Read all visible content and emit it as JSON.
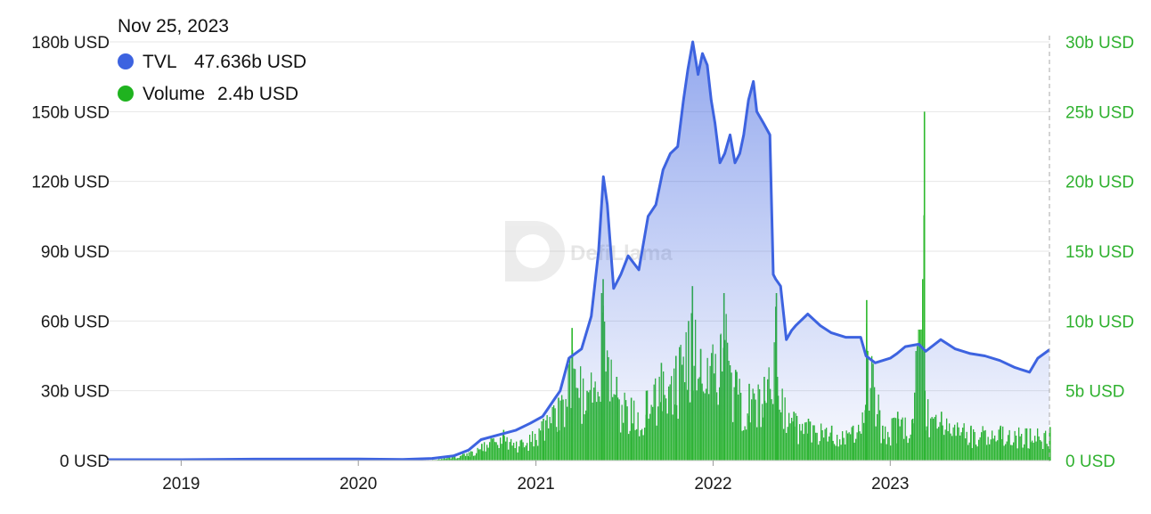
{
  "tooltip": {
    "date": "Nov 25, 2023",
    "items": [
      {
        "name": "TVL",
        "value": "47.636b USD",
        "color": "#3d63e0"
      },
      {
        "name": "Volume",
        "value": "2.4b USD",
        "color": "#1fb31f"
      }
    ]
  },
  "watermark": "DefiLlama",
  "colors": {
    "tvl_line": "#3d63e0",
    "volume_bars": "#2db82d",
    "right_axis_text": "#2fb12f"
  },
  "chart_data": {
    "type": "line",
    "x_axis": {
      "type": "time",
      "ticks": [
        "2019",
        "2020",
        "2021",
        "2022",
        "2023"
      ],
      "range": [
        "2018-08-01",
        "2023-11-25"
      ]
    },
    "y_left": {
      "label": "",
      "ticks": [
        "0 USD",
        "30b USD",
        "60b USD",
        "90b USD",
        "120b USD",
        "150b USD",
        "180b USD"
      ],
      "ylim": [
        0,
        180
      ]
    },
    "y_right": {
      "label": "",
      "ticks": [
        "0 USD",
        "5b USD",
        "10b USD",
        "15b USD",
        "20b USD",
        "25b USD",
        "30b USD"
      ],
      "ylim": [
        0,
        30
      ]
    },
    "grid": true,
    "legend": "top-left",
    "series": [
      {
        "name": "TVL",
        "unit": "b USD",
        "axis": "left",
        "render": "area-line",
        "x": [
          "2018-08-01",
          "2019-01-01",
          "2019-06-01",
          "2020-01-01",
          "2020-04-01",
          "2020-06-01",
          "2020-07-15",
          "2020-08-15",
          "2020-09-10",
          "2020-10-15",
          "2020-11-20",
          "2020-12-20",
          "2021-01-15",
          "2021-02-10",
          "2021-02-20",
          "2021-03-10",
          "2021-04-05",
          "2021-04-25",
          "2021-05-10",
          "2021-05-20",
          "2021-05-28",
          "2021-06-10",
          "2021-06-25",
          "2021-07-10",
          "2021-08-01",
          "2021-08-20",
          "2021-09-05",
          "2021-09-20",
          "2021-10-05",
          "2021-10-20",
          "2021-11-01",
          "2021-11-10",
          "2021-11-20",
          "2021-12-01",
          "2021-12-10",
          "2021-12-20",
          "2021-12-28",
          "2022-01-05",
          "2022-01-15",
          "2022-01-25",
          "2022-02-05",
          "2022-02-15",
          "2022-02-25",
          "2022-03-05",
          "2022-03-15",
          "2022-03-25",
          "2022-04-01",
          "2022-04-15",
          "2022-04-28",
          "2022-05-05",
          "2022-05-10",
          "2022-05-20",
          "2022-06-01",
          "2022-06-12",
          "2022-06-20",
          "2022-07-15",
          "2022-08-10",
          "2022-09-01",
          "2022-10-01",
          "2022-11-01",
          "2022-11-12",
          "2022-12-01",
          "2023-01-01",
          "2023-01-15",
          "2023-02-01",
          "2023-03-01",
          "2023-03-15",
          "2023-04-15",
          "2023-05-15",
          "2023-06-15",
          "2023-07-15",
          "2023-08-15",
          "2023-09-15",
          "2023-10-15",
          "2023-11-01",
          "2023-11-25"
        ],
        "values": [
          0.4,
          0.4,
          0.6,
          0.7,
          0.5,
          0.9,
          2.0,
          4.5,
          9.0,
          11.0,
          13.0,
          16.0,
          19.0,
          27.0,
          30.0,
          44.0,
          48.0,
          62.0,
          90.0,
          122.0,
          110.0,
          74.0,
          80.0,
          88.0,
          82.0,
          105.0,
          110.0,
          125.0,
          132.0,
          135.0,
          155.0,
          168.0,
          180.0,
          166.0,
          175.0,
          170.0,
          155.0,
          145.0,
          128.0,
          132.0,
          140.0,
          128.0,
          132.0,
          140.0,
          155.0,
          163.0,
          150.0,
          145.0,
          140.0,
          80.0,
          78.0,
          75.0,
          52.0,
          56.0,
          58.0,
          63.0,
          58.0,
          55.0,
          53.0,
          53.0,
          45.0,
          42.0,
          44.0,
          46.0,
          49.0,
          50.0,
          47.0,
          52.0,
          48.0,
          46.0,
          45.0,
          43.0,
          40.0,
          38.0,
          44.0,
          47.636
        ]
      },
      {
        "name": "Volume",
        "unit": "b USD",
        "axis": "right",
        "render": "bars",
        "x": [
          "2018-08-01",
          "2019-06-01",
          "2020-06-01",
          "2020-08-15",
          "2020-09-10",
          "2020-10-25",
          "2020-12-01",
          "2021-01-15",
          "2021-02-15",
          "2021-03-15",
          "2021-04-15",
          "2021-05-15",
          "2021-05-18",
          "2021-06-15",
          "2021-07-15",
          "2021-08-15",
          "2021-09-15",
          "2021-10-15",
          "2021-11-10",
          "2021-11-18",
          "2021-12-05",
          "2022-01-15",
          "2022-01-22",
          "2022-02-15",
          "2022-03-15",
          "2022-04-15",
          "2022-05-10",
          "2022-05-12",
          "2022-06-15",
          "2022-07-15",
          "2022-09-01",
          "2022-10-15",
          "2022-11-10",
          "2022-11-12",
          "2022-12-15",
          "2023-01-15",
          "2023-02-15",
          "2023-03-11",
          "2023-03-12",
          "2023-04-15",
          "2023-06-15",
          "2023-08-15",
          "2023-10-15",
          "2023-11-25"
        ],
        "values": [
          0.0,
          0.0,
          0.05,
          0.6,
          1.2,
          2.2,
          1.5,
          3.0,
          4.5,
          9.5,
          5.0,
          12.0,
          13.0,
          6.0,
          4.5,
          5.0,
          7.0,
          7.5,
          10.0,
          12.5,
          8.0,
          9.0,
          12.0,
          6.5,
          5.5,
          6.0,
          12.0,
          6.0,
          3.5,
          3.0,
          2.5,
          2.5,
          4.0,
          11.5,
          2.5,
          3.5,
          3.0,
          25.0,
          5.0,
          3.5,
          2.5,
          2.5,
          2.3,
          2.4
        ]
      }
    ]
  }
}
